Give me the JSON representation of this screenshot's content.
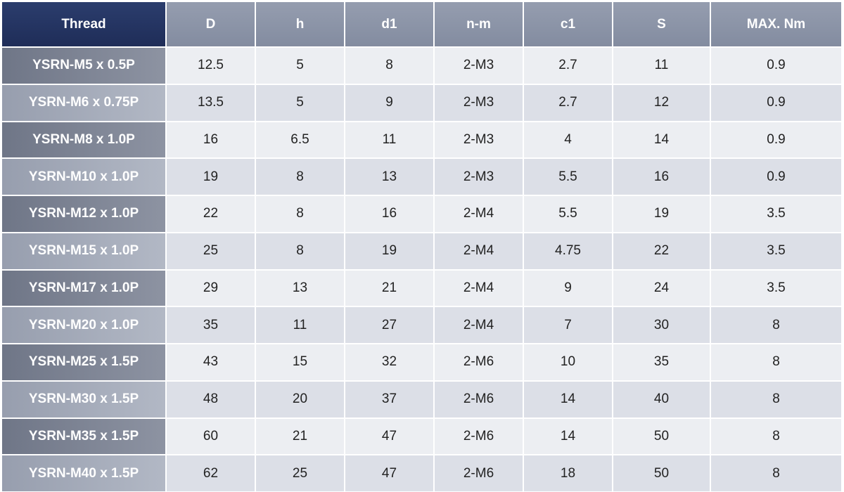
{
  "table": {
    "columns": [
      "Thread",
      "D",
      "h",
      "d1",
      "n-m",
      "c1",
      "S",
      "MAX. Nm"
    ],
    "rows": [
      [
        "YSRN-M5 x 0.5P",
        "12.5",
        "5",
        "8",
        "2-M3",
        "2.7",
        "11",
        "0.9"
      ],
      [
        "YSRN-M6 x 0.75P",
        "13.5",
        "5",
        "9",
        "2-M3",
        "2.7",
        "12",
        "0.9"
      ],
      [
        "YSRN-M8 x 1.0P",
        "16",
        "6.5",
        "11",
        "2-M3",
        "4",
        "14",
        "0.9"
      ],
      [
        "YSRN-M10 x 1.0P",
        "19",
        "8",
        "13",
        "2-M3",
        "5.5",
        "16",
        "0.9"
      ],
      [
        "YSRN-M12 x 1.0P",
        "22",
        "8",
        "16",
        "2-M4",
        "5.5",
        "19",
        "3.5"
      ],
      [
        "YSRN-M15 x 1.0P",
        "25",
        "8",
        "19",
        "2-M4",
        "4.75",
        "22",
        "3.5"
      ],
      [
        "YSRN-M17 x 1.0P",
        "29",
        "13",
        "21",
        "2-M4",
        "9",
        "24",
        "3.5"
      ],
      [
        "YSRN-M20 x 1.0P",
        "35",
        "11",
        "27",
        "2-M4",
        "7",
        "30",
        "8"
      ],
      [
        "YSRN-M25 x 1.5P",
        "43",
        "15",
        "32",
        "2-M6",
        "10",
        "35",
        "8"
      ],
      [
        "YSRN-M30 x 1.5P",
        "48",
        "20",
        "37",
        "2-M6",
        "14",
        "40",
        "8"
      ],
      [
        "YSRN-M35 x 1.5P",
        "60",
        "21",
        "47",
        "2-M6",
        "14",
        "50",
        "8"
      ],
      [
        "YSRN-M40 x 1.5P",
        "62",
        "25",
        "47",
        "2-M6",
        "18",
        "50",
        "8"
      ]
    ]
  }
}
